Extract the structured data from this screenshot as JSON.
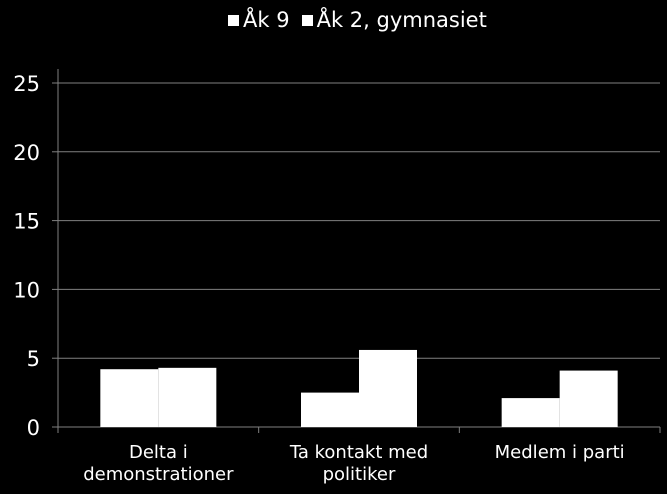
{
  "chart_data": {
    "type": "bar",
    "title": "",
    "xlabel": "",
    "ylabel": "",
    "ylim": [
      0,
      25
    ],
    "yticks": [
      0,
      5,
      10,
      15,
      20,
      25
    ],
    "grid": true,
    "legend_position": "top",
    "categories": [
      [
        "Delta i",
        "demonstrationer"
      ],
      [
        "Ta kontakt med",
        "politiker"
      ],
      [
        "Medlem i parti"
      ]
    ],
    "series": [
      {
        "name": "Åk 9",
        "values": [
          4.2,
          2.5,
          2.1
        ]
      },
      {
        "name": "Åk 2, gymnasiet",
        "values": [
          4.3,
          5.6,
          4.1
        ]
      }
    ],
    "colors": {
      "background": "#000000",
      "bar": "#ffffff",
      "grid": "#808080",
      "axis": "#808080",
      "text": "#ffffff"
    }
  }
}
